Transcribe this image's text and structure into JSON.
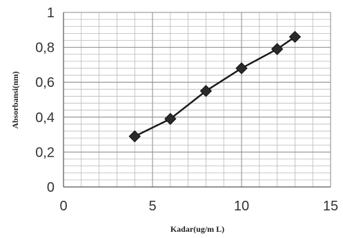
{
  "chart_data": {
    "type": "line",
    "title": "",
    "xlabel": "Kadar(ug/m L)",
    "ylabel": "Absorbansi(nm)",
    "xlim": [
      0,
      15
    ],
    "ylim": [
      0,
      1
    ],
    "x_ticks": [
      0,
      5,
      10,
      15
    ],
    "x_tick_labels": [
      "0",
      "5",
      "10",
      "15"
    ],
    "y_ticks": [
      0,
      0.2,
      0.4,
      0.6,
      0.8,
      1
    ],
    "y_tick_labels": [
      "0",
      "0,2",
      "0,4",
      "0,6",
      "0,8",
      "1"
    ],
    "grid": true,
    "legend": "none",
    "series": [
      {
        "x": [
          4,
          6,
          8,
          10,
          12,
          13
        ],
        "values": [
          0.29,
          0.39,
          0.55,
          0.68,
          0.79,
          0.86
        ],
        "color": "#1a1a1a",
        "marker": "diamond"
      }
    ]
  }
}
